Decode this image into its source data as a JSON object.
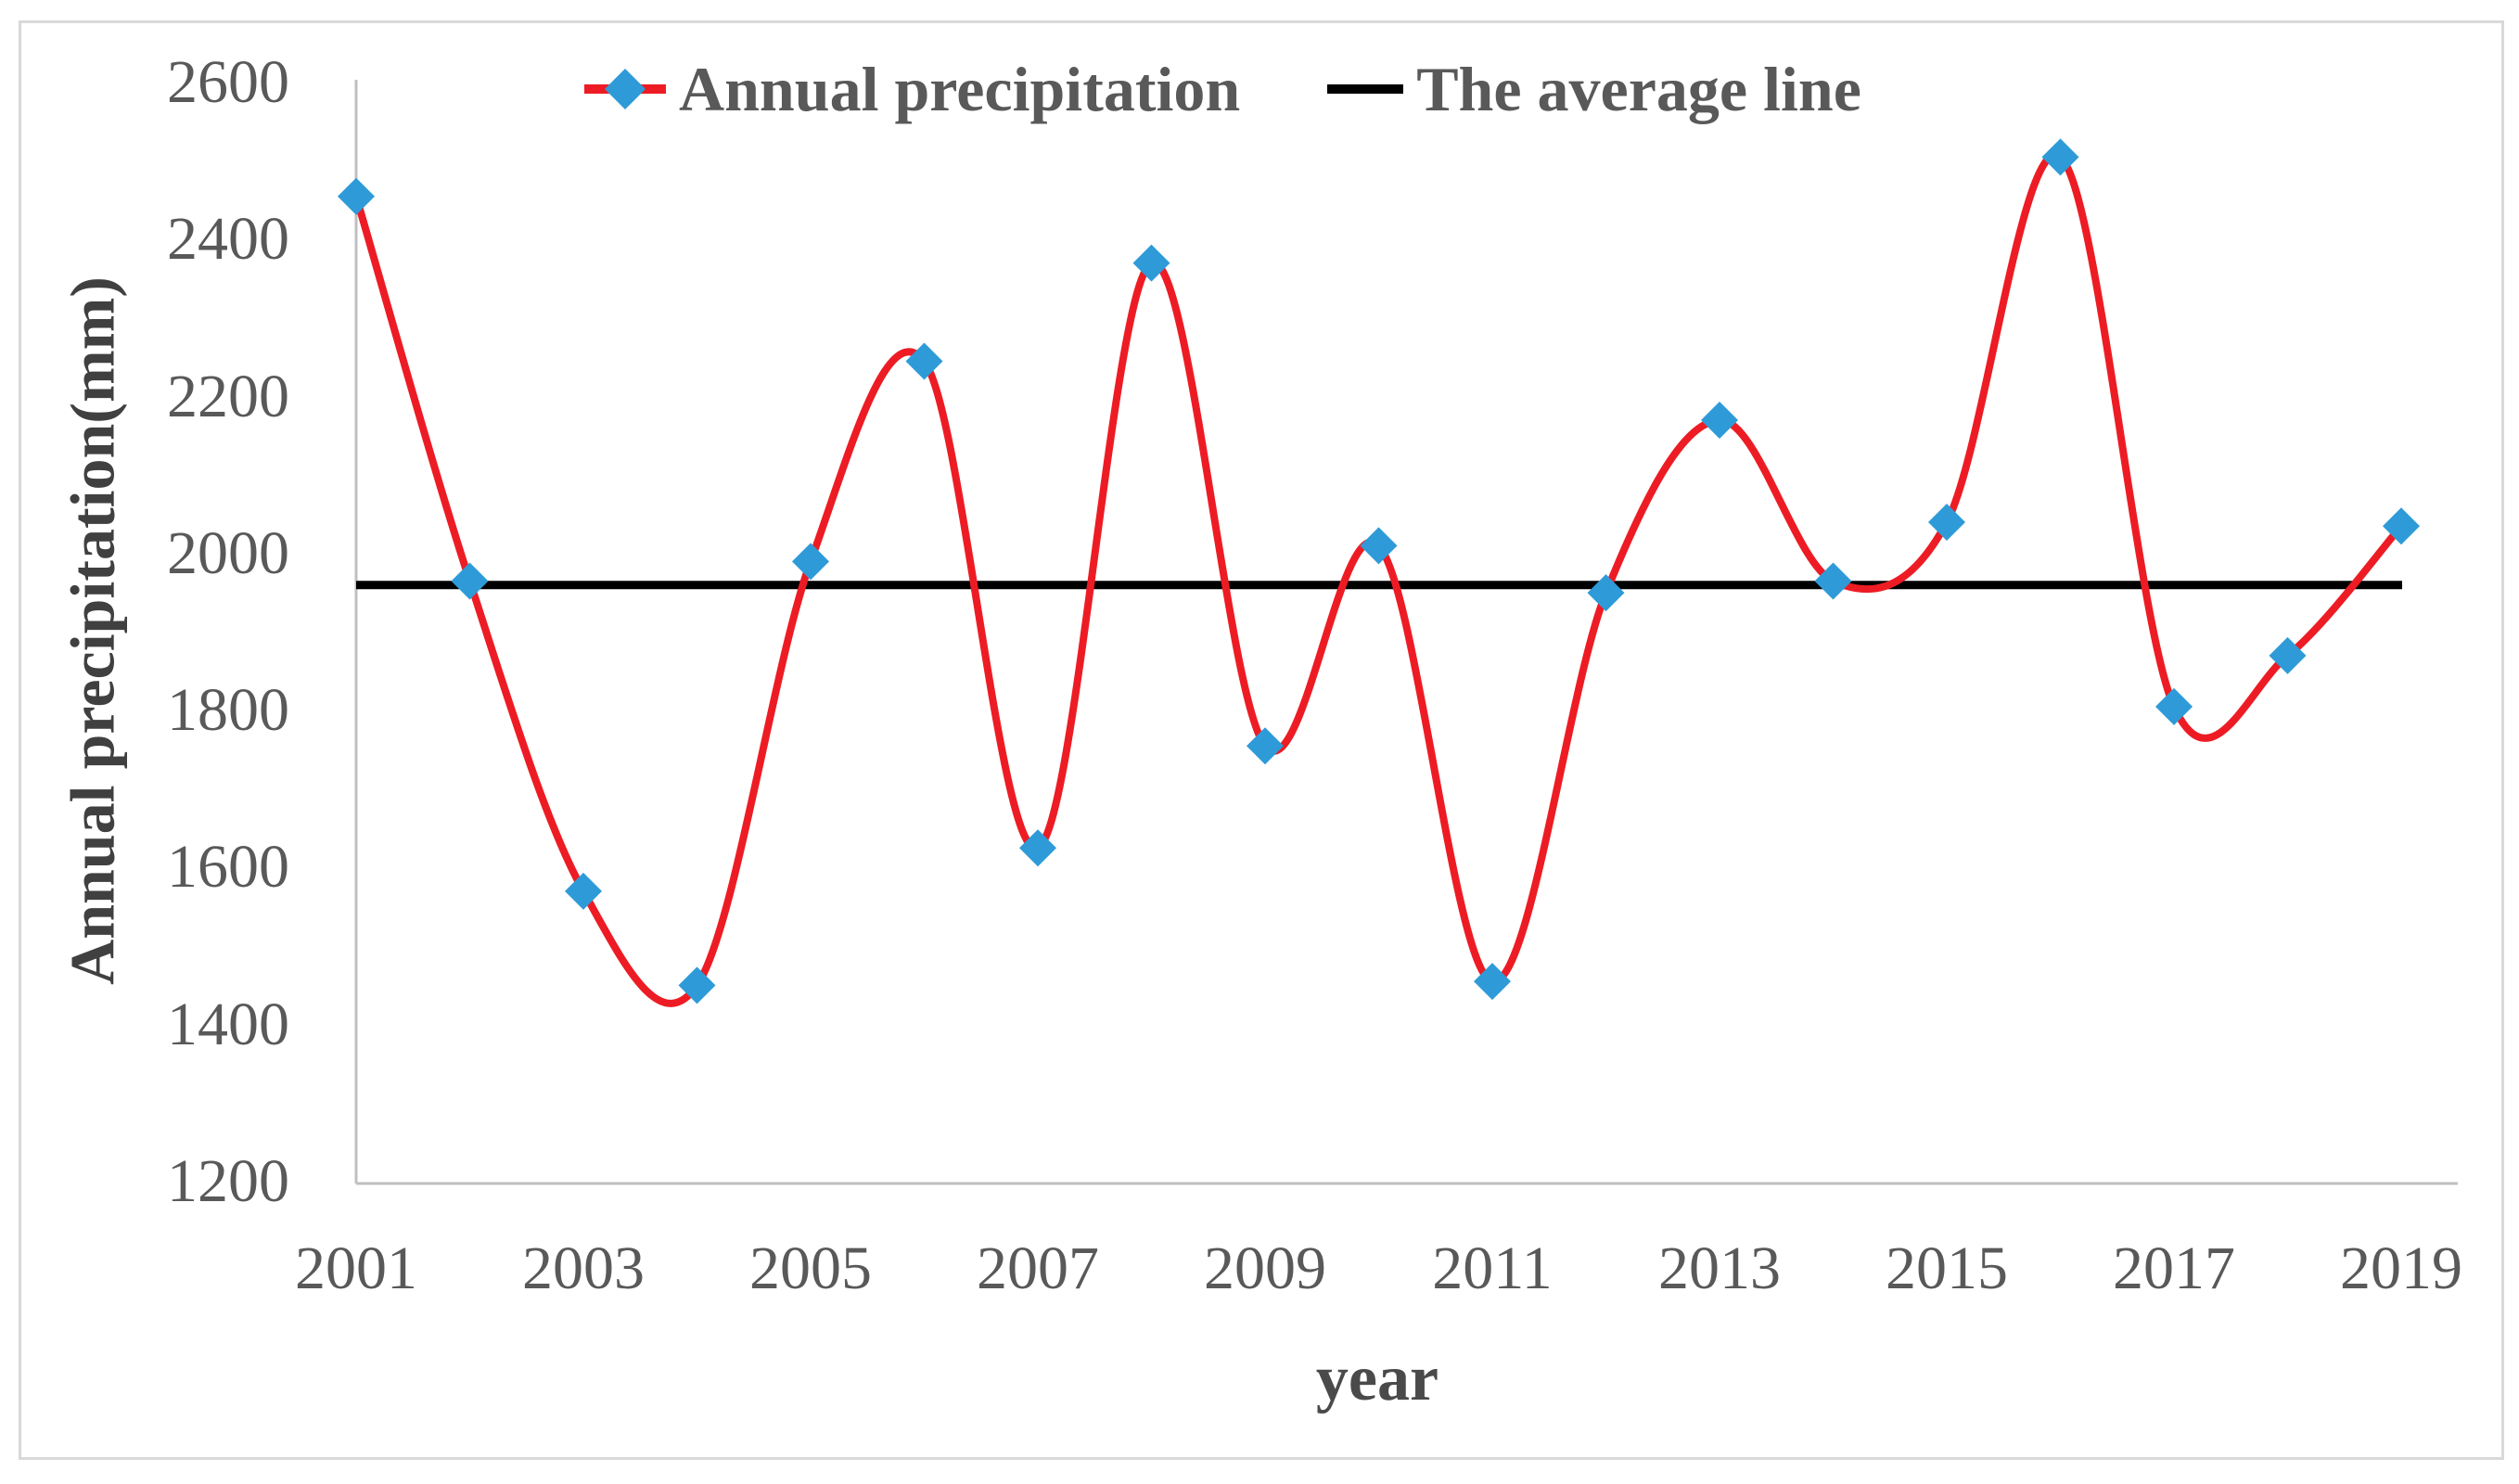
{
  "figure": {
    "background": "#FFFFFF",
    "border_color": "#D9D9D9"
  },
  "chart_data": {
    "type": "line",
    "title": "",
    "xlabel": "year",
    "ylabel": "Annual precipitation(mm)",
    "x": [
      2001,
      2002,
      2003,
      2004,
      2005,
      2006,
      2007,
      2008,
      2009,
      2010,
      2011,
      2012,
      2013,
      2014,
      2015,
      2016,
      2017,
      2018,
      2019
    ],
    "series": [
      {
        "name": "Annual precipitation",
        "type": "smooth-line",
        "marker": "diamond",
        "values": [
          2455,
          1965,
          1570,
          1450,
          1990,
          2245,
          1625,
          2370,
          1755,
          2010,
          1455,
          1950,
          2170,
          1965,
          2040,
          2505,
          1805,
          1870,
          2035
        ]
      },
      {
        "name": "The average line",
        "type": "hline",
        "value": 1960
      }
    ],
    "ylim": [
      1200,
      2600
    ],
    "yticks": [
      2600,
      2400,
      2200,
      2000,
      1800,
      1600,
      1400,
      1200
    ],
    "xticks": [
      2001,
      2003,
      2005,
      2007,
      2009,
      2011,
      2013,
      2015,
      2017,
      2019
    ],
    "grid": false,
    "legend_position": "top-center",
    "colors": {
      "line": "#ED1C24",
      "marker": "#2E9BD8",
      "average_line": "#000000",
      "axis": "#BFBFBF",
      "tick_text": "#595959",
      "title_text": "#404040"
    }
  }
}
